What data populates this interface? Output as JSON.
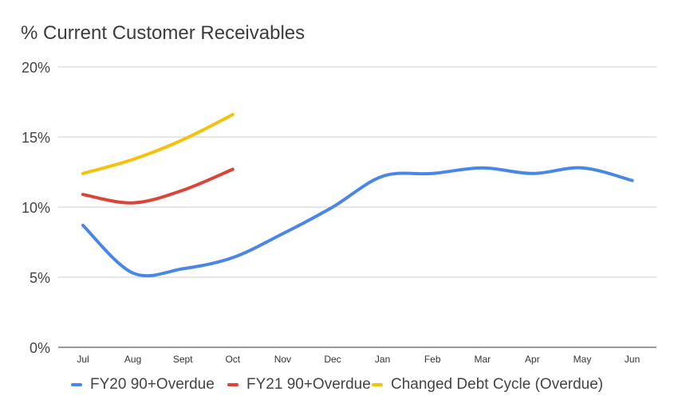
{
  "chart_data": {
    "type": "line",
    "title": "% Current Customer Receivables",
    "xlabel": "",
    "ylabel": "",
    "categories": [
      "Jul",
      "Aug",
      "Sept",
      "Oct",
      "Nov",
      "Dec",
      "Jan",
      "Feb",
      "Mar",
      "Apr",
      "May",
      "Jun"
    ],
    "ylim": [
      0,
      20
    ],
    "yticks": [
      0,
      5,
      10,
      15,
      20
    ],
    "ytick_labels": [
      "0%",
      "5%",
      "10%",
      "15%",
      "20%"
    ],
    "grid": true,
    "legend_position": "bottom",
    "series": [
      {
        "name": "FY20 90+Overdue",
        "color": "#4a86e8",
        "values": [
          8.7,
          5.3,
          5.6,
          6.4,
          8.1,
          10.0,
          12.2,
          12.4,
          12.8,
          12.4,
          12.8,
          11.9
        ]
      },
      {
        "name": "FY21 90+Overdue",
        "color": "#db4437",
        "values": [
          10.9,
          10.3,
          11.2,
          12.7,
          null,
          null,
          null,
          null,
          null,
          null,
          null,
          null
        ]
      },
      {
        "name": "Changed Debt Cycle (Overdue)",
        "color": "#f4c20d",
        "values": [
          12.4,
          13.4,
          14.8,
          16.6,
          null,
          null,
          null,
          null,
          null,
          null,
          null,
          null
        ]
      }
    ]
  }
}
